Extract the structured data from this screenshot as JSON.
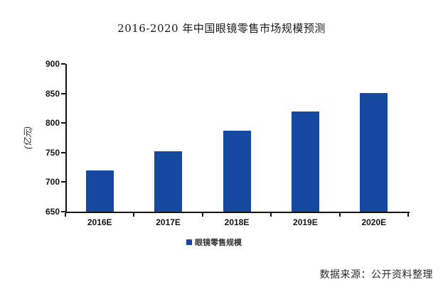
{
  "chart_data": {
    "type": "bar",
    "title": "2016-2020 年中国眼镜零售市场规模预测",
    "categories": [
      "2016E",
      "2017E",
      "2018E",
      "2019E",
      "2020E"
    ],
    "series": [
      {
        "name": "眼镜零售规模",
        "values": [
          720,
          752,
          787,
          819,
          851
        ]
      }
    ],
    "xlabel": "",
    "ylabel": "(亿元)",
    "ylim": [
      650,
      900
    ],
    "ytick_step": 50,
    "yticks": [
      650,
      700,
      750,
      800,
      850,
      900
    ],
    "bar_color": "#1549a0",
    "axis_color": "#141414",
    "grid": false,
    "legend_position": "bottom",
    "source": "数据来源：公开资料整理"
  }
}
